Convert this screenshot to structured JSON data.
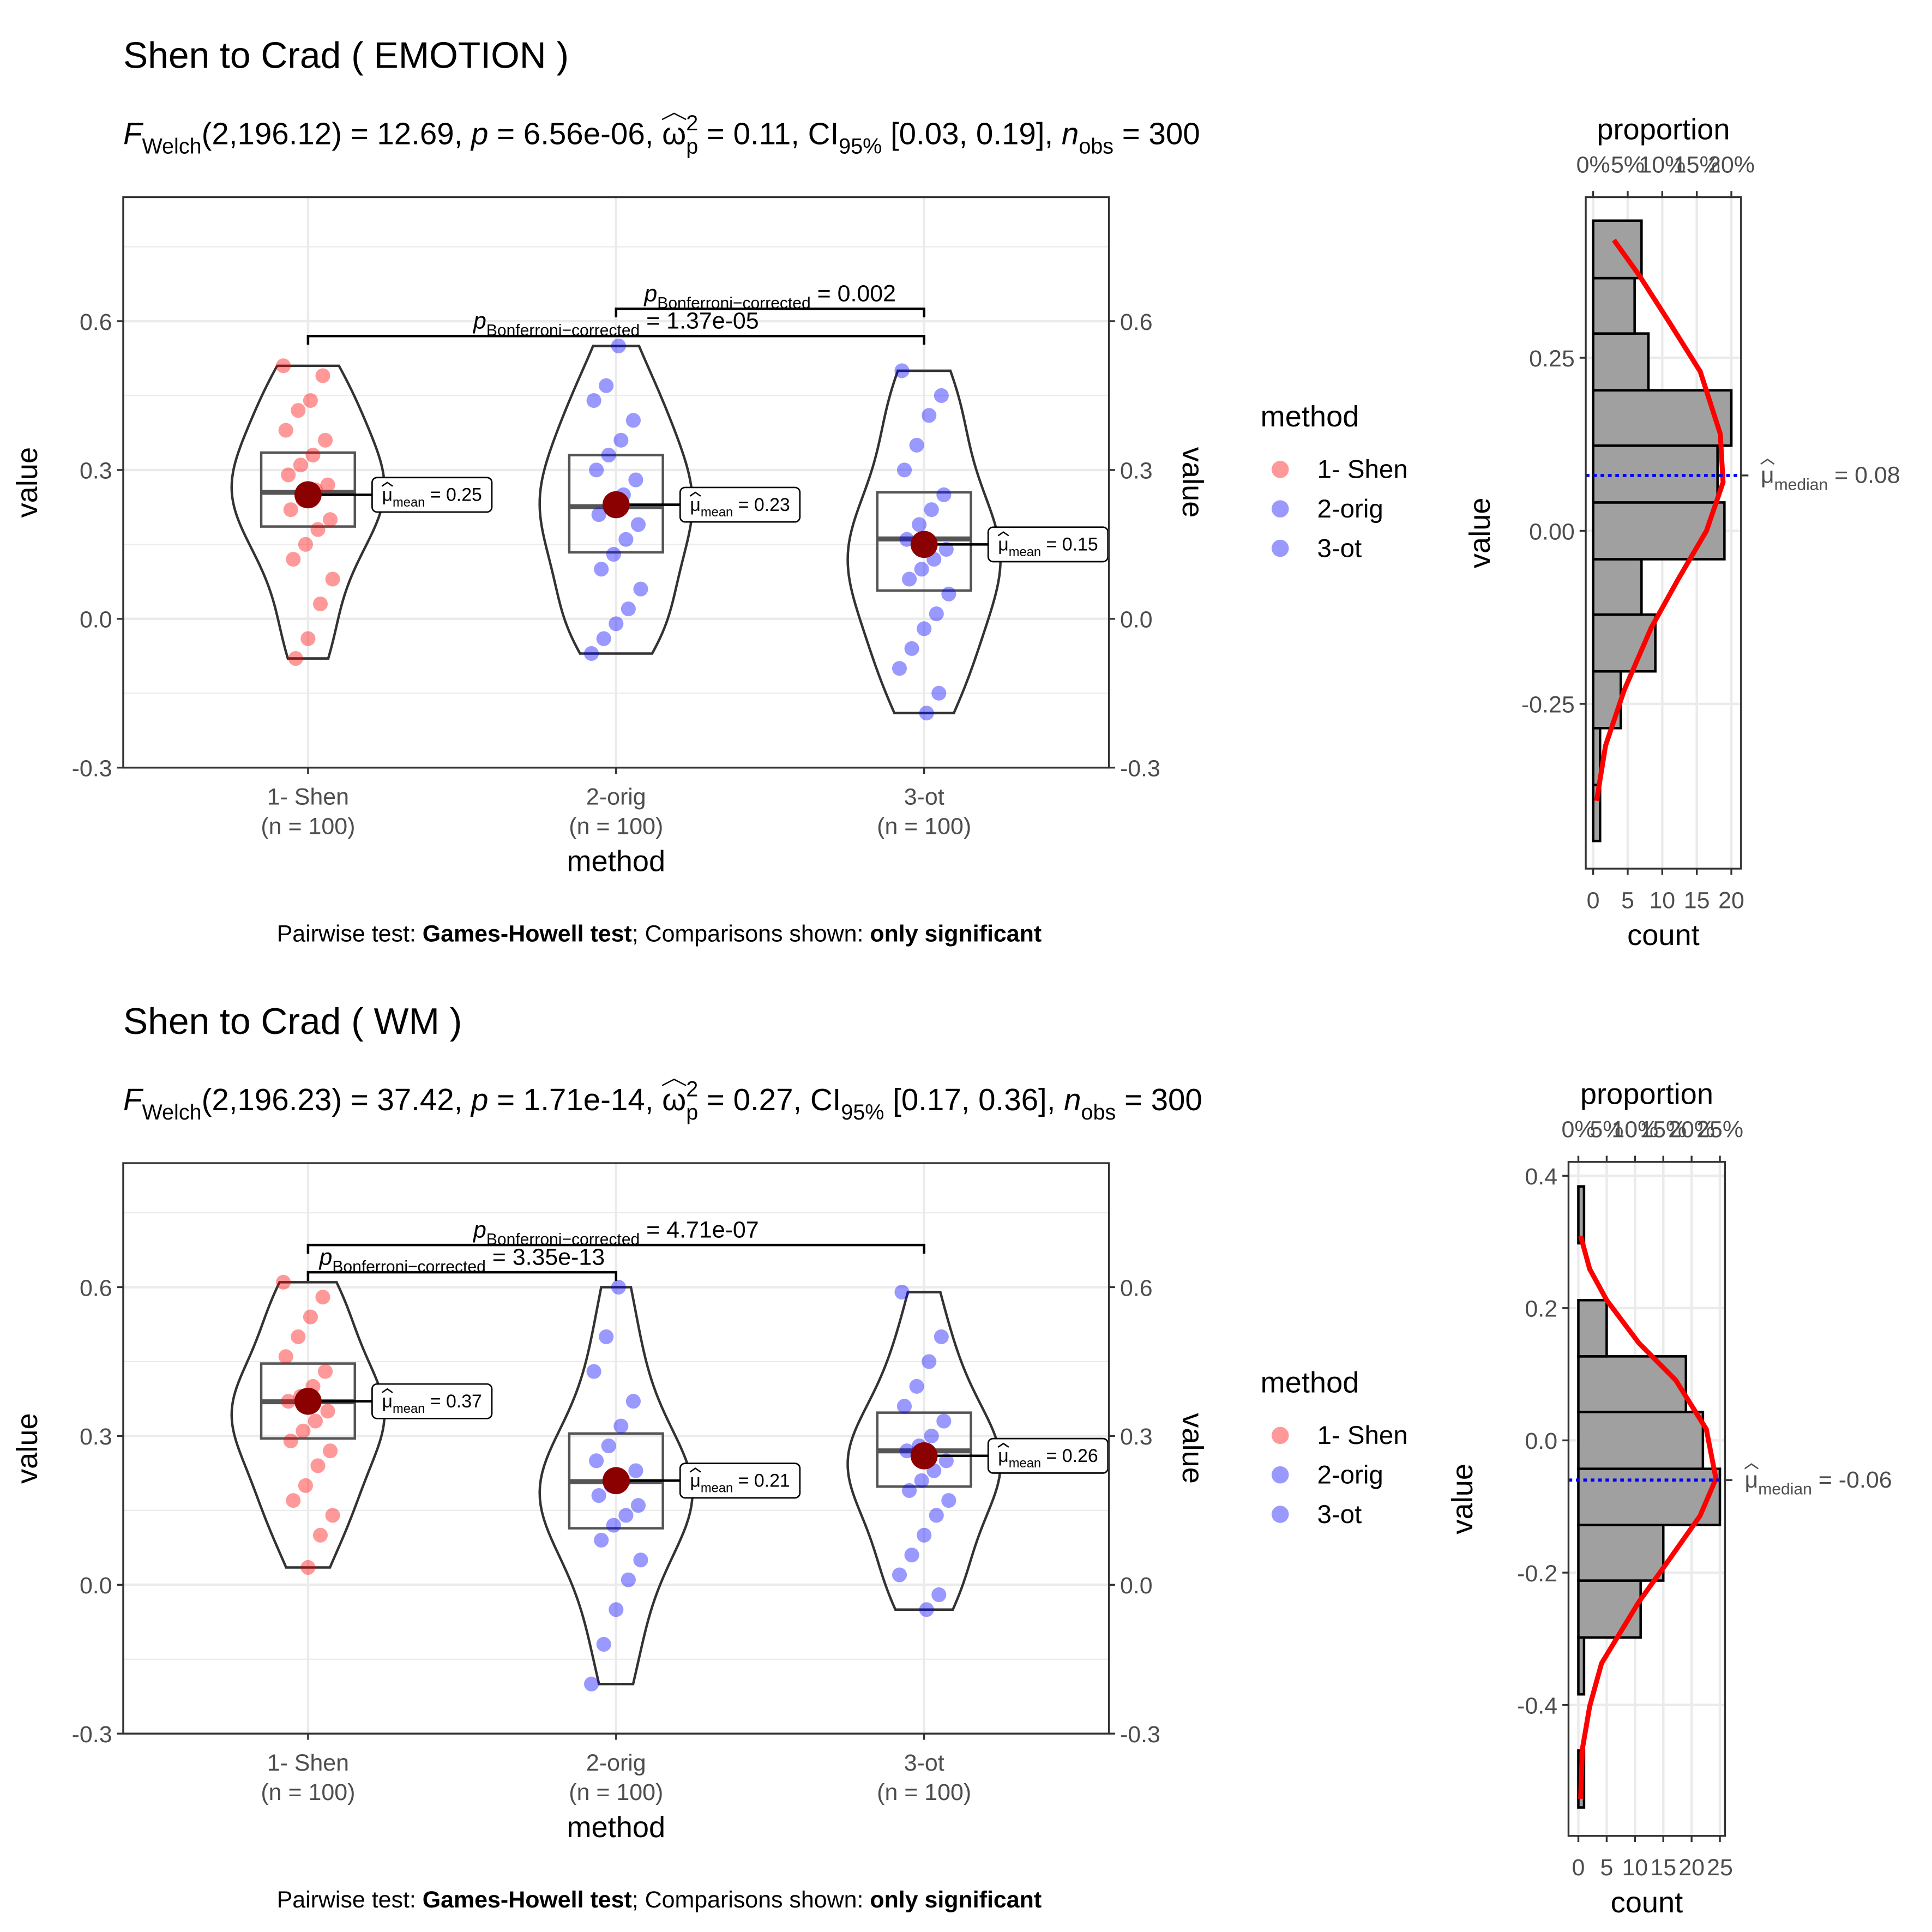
{
  "chart_data": [
    {
      "type": "violin",
      "title": "Shen to Crad ( EMOTION )",
      "subtitle": [
        {
          "text": "F",
          "style": "italic"
        },
        {
          "text": "Welch",
          "style": "sub"
        },
        {
          "text": "(2,196.12) = 12.69, ",
          "style": "normal"
        },
        {
          "text": "p",
          "style": "italic"
        },
        {
          "text": " = 6.56e-06, ",
          "style": "normal"
        },
        {
          "text": "ω",
          "style": "hat"
        },
        {
          "text": "2",
          "style": "sup"
        },
        {
          "text": "p",
          "style": "sub"
        },
        {
          "text": " = 0.11, CI",
          "style": "normal"
        },
        {
          "text": "95%",
          "style": "sub"
        },
        {
          "text": " [0.03, 0.19], ",
          "style": "normal"
        },
        {
          "text": "n",
          "style": "italic"
        },
        {
          "text": "obs",
          "style": "sub"
        },
        {
          "text": " = 300",
          "style": "normal"
        }
      ],
      "x_label": "method",
      "y_label": "value",
      "categories": [
        "1- Shen",
        "2-orig",
        "3-ot"
      ],
      "category_sublabels": [
        "(n = 100)",
        "(n = 100)",
        "(n = 100)"
      ],
      "ylim": [
        -0.3,
        0.85
      ],
      "yticks": [
        -0.3,
        {
          "value": 0,
          "label": "0.0"
        },
        0.3,
        0.6
      ],
      "minor_yticks": [
        -0.15,
        0.15,
        0.45,
        0.75
      ],
      "grid": true,
      "secondary_y_axis": true,
      "legend_title": "method",
      "legend_position": "right",
      "series": [
        {
          "name": "1- Shen",
          "color": "#ff0000",
          "values": [
            0.51,
            0.49,
            0.44,
            0.42,
            0.38,
            0.36,
            0.33,
            0.31,
            0.29,
            0.27,
            0.26,
            0.24,
            0.22,
            0.2,
            0.18,
            0.15,
            0.12,
            0.08,
            0.03,
            -0.04,
            -0.08
          ],
          "box": [
            0.186,
            0.255,
            0.335
          ],
          "mean": 0.25
        },
        {
          "name": "2-orig",
          "color": "#0000ff",
          "values": [
            0.55,
            0.47,
            0.44,
            0.4,
            0.36,
            0.33,
            0.3,
            0.28,
            0.25,
            0.23,
            0.21,
            0.19,
            0.16,
            0.13,
            0.1,
            0.06,
            0.02,
            -0.01,
            -0.04,
            -0.07
          ],
          "box": [
            0.134,
            0.226,
            0.33
          ],
          "mean": 0.23
        },
        {
          "name": "3-ot",
          "color": "#0000ff",
          "values": [
            0.5,
            0.45,
            0.41,
            0.35,
            0.3,
            0.25,
            0.22,
            0.19,
            0.16,
            0.14,
            0.12,
            0.1,
            0.08,
            0.05,
            0.01,
            -0.02,
            -0.06,
            -0.1,
            -0.15,
            -0.19
          ],
          "box": [
            0.057,
            0.161,
            0.255
          ],
          "mean": 0.15
        }
      ],
      "mean_color": "#8b0000",
      "mean_label": [
        {
          "text": "μ",
          "style": "hat"
        },
        {
          "text": "mean",
          "style": "sub"
        },
        {
          "text": " = ",
          "style": "normal"
        }
      ],
      "p_label": [
        {
          "text": "p",
          "style": "italic"
        },
        {
          "text": "Bonferroni−corrected",
          "style": "sub"
        },
        {
          "text": " = ",
          "style": "normal"
        }
      ],
      "comparisons": [
        {
          "groups": [
            "1- Shen",
            "3-ot"
          ],
          "label": "1.37e-05"
        },
        {
          "groups": [
            "2-orig",
            "3-ot"
          ],
          "label": "0.002"
        }
      ],
      "caption": [
        {
          "text": "Pairwise test: ",
          "style": "normal"
        },
        {
          "text": "Games-Howell test",
          "style": "bold"
        },
        {
          "text": "; Comparisons shown: ",
          "style": "normal"
        },
        {
          "text": "only significant",
          "style": "bold"
        }
      ]
    },
    {
      "type": "histogram",
      "orientation": "horizontal",
      "bins": [
        -0.448,
        -0.367,
        -0.285,
        -0.203,
        -0.121,
        -0.041,
        0.041,
        0.123,
        0.203,
        0.285,
        0.365,
        0.448
      ],
      "counts": [
        1,
        1,
        4,
        9,
        7,
        19,
        18,
        20,
        8,
        6,
        7
      ],
      "color": "#a0a0a0",
      "x_label": "count",
      "x2_label": "proportion",
      "y_label": "value",
      "xlim": [
        -1.07,
        21.4
      ],
      "xticks": [
        0,
        5,
        10,
        15,
        20
      ],
      "x2lim": [
        -1.07,
        21.4
      ],
      "x2ticks": [
        {
          "value": 0,
          "label": "0%"
        },
        {
          "value": 5,
          "label": "5%"
        },
        {
          "value": 10,
          "label": "10%"
        },
        {
          "value": 15,
          "label": "15%"
        },
        {
          "value": 20,
          "label": "20%"
        }
      ],
      "ylim": [
        -0.488,
        0.482
      ],
      "yticks": [
        -0.25,
        {
          "value": 0,
          "label": "0.00"
        },
        0.25
      ],
      "grid": true,
      "curve": {
        "color": "#ff0000",
        "x": [
          0.5,
          1.8,
          4.5,
          8.4,
          12.3,
          16.4,
          18.8,
          18.4,
          15.5,
          11.1,
          6.6,
          3.0
        ],
        "y": [
          -0.39,
          -0.31,
          -0.23,
          -0.14,
          -0.07,
          0.0,
          0.07,
          0.14,
          0.23,
          0.3,
          0.37,
          0.42
        ]
      },
      "median": 0.08,
      "median_color": "#0000ff",
      "median_label": [
        {
          "text": "μ",
          "style": "hat"
        },
        {
          "text": "median",
          "style": "sub"
        },
        {
          "text": " = ",
          "style": "normal"
        }
      ]
    },
    {
      "type": "violin",
      "title": "Shen to Crad ( WM )",
      "subtitle": [
        {
          "text": "F",
          "style": "italic"
        },
        {
          "text": "Welch",
          "style": "sub"
        },
        {
          "text": "(2,196.23) = 37.42, ",
          "style": "normal"
        },
        {
          "text": "p",
          "style": "italic"
        },
        {
          "text": " = 1.71e-14, ",
          "style": "normal"
        },
        {
          "text": "ω",
          "style": "hat"
        },
        {
          "text": "2",
          "style": "sup"
        },
        {
          "text": "p",
          "style": "sub"
        },
        {
          "text": " = 0.27, CI",
          "style": "normal"
        },
        {
          "text": "95%",
          "style": "sub"
        },
        {
          "text": " [0.17, 0.36], ",
          "style": "normal"
        },
        {
          "text": "n",
          "style": "italic"
        },
        {
          "text": "obs",
          "style": "sub"
        },
        {
          "text": " = 300",
          "style": "normal"
        }
      ],
      "x_label": "method",
      "y_label": "value",
      "categories": [
        "1- Shen",
        "2-orig",
        "3-ot"
      ],
      "category_sublabels": [
        "(n = 100)",
        "(n = 100)",
        "(n = 100)"
      ],
      "ylim": [
        -0.3,
        0.85
      ],
      "yticks": [
        -0.3,
        {
          "value": 0,
          "label": "0.0"
        },
        0.3,
        0.6
      ],
      "minor_yticks": [
        -0.15,
        0.15,
        0.45,
        0.75
      ],
      "grid": true,
      "secondary_y_axis": true,
      "legend_title": "method",
      "legend_position": "right",
      "series": [
        {
          "name": "1- Shen",
          "color": "#ff0000",
          "values": [
            0.61,
            0.58,
            0.54,
            0.5,
            0.46,
            0.43,
            0.4,
            0.38,
            0.37,
            0.35,
            0.33,
            0.31,
            0.29,
            0.27,
            0.24,
            0.2,
            0.17,
            0.14,
            0.1,
            0.035
          ],
          "box": [
            0.295,
            0.369,
            0.446
          ],
          "mean": 0.37
        },
        {
          "name": "2-orig",
          "color": "#0000ff",
          "values": [
            0.6,
            0.5,
            0.43,
            0.37,
            0.32,
            0.28,
            0.25,
            0.23,
            0.21,
            0.2,
            0.18,
            0.16,
            0.14,
            0.12,
            0.09,
            0.05,
            0.01,
            -0.05,
            -0.12,
            -0.2
          ],
          "box": [
            0.114,
            0.208,
            0.305
          ],
          "mean": 0.21
        },
        {
          "name": "3-ot",
          "color": "#0000ff",
          "values": [
            0.59,
            0.5,
            0.45,
            0.4,
            0.36,
            0.33,
            0.3,
            0.28,
            0.27,
            0.25,
            0.23,
            0.21,
            0.19,
            0.17,
            0.14,
            0.1,
            0.06,
            0.02,
            -0.02,
            -0.05
          ],
          "box": [
            0.198,
            0.27,
            0.347
          ],
          "mean": 0.26
        }
      ],
      "mean_color": "#8b0000",
      "mean_label": [
        {
          "text": "μ",
          "style": "hat"
        },
        {
          "text": "mean",
          "style": "sub"
        },
        {
          "text": " = ",
          "style": "normal"
        }
      ],
      "p_label": [
        {
          "text": "p",
          "style": "italic"
        },
        {
          "text": "Bonferroni−corrected",
          "style": "sub"
        },
        {
          "text": " = ",
          "style": "normal"
        }
      ],
      "comparisons": [
        {
          "groups": [
            "1- Shen",
            "2-orig"
          ],
          "label": "3.35e-13"
        },
        {
          "groups": [
            "1- Shen",
            "3-ot"
          ],
          "label": "4.71e-07"
        }
      ],
      "caption": [
        {
          "text": "Pairwise test: ",
          "style": "normal"
        },
        {
          "text": "Games-Howell test",
          "style": "bold"
        },
        {
          "text": "; Comparisons shown: ",
          "style": "normal"
        },
        {
          "text": "only significant",
          "style": "bold"
        }
      ]
    },
    {
      "type": "histogram",
      "orientation": "horizontal",
      "bins": [
        -0.555,
        -0.469,
        -0.384,
        -0.298,
        -0.212,
        -0.128,
        -0.043,
        0.043,
        0.127,
        0.212,
        0.298,
        0.384
      ],
      "counts": [
        1,
        0,
        1,
        11,
        15,
        25,
        22,
        19,
        5,
        0,
        1
      ],
      "color": "#a0a0a0",
      "x_label": "count",
      "x2_label": "proportion",
      "y_label": "value",
      "xlim": [
        -1.74,
        25.9
      ],
      "xticks": [
        0,
        5,
        10,
        15,
        20,
        25
      ],
      "x2lim": [
        -1.74,
        25.9
      ],
      "x2ticks": [
        {
          "value": 0,
          "label": "0%"
        },
        {
          "value": 5,
          "label": "5%"
        },
        {
          "value": 10,
          "label": "10%"
        },
        {
          "value": 15,
          "label": "15%"
        },
        {
          "value": 20,
          "label": "20%"
        },
        {
          "value": 25,
          "label": "25%"
        }
      ],
      "ylim": [
        -0.598,
        0.421
      ],
      "yticks": [
        -0.4,
        -0.2,
        {
          "value": 0,
          "label": "0.0"
        },
        0.2,
        0.4
      ],
      "grid": true,
      "curve": {
        "color": "#ff0000",
        "x": [
          0.4,
          0.7,
          2.0,
          4.1,
          10.7,
          15.4,
          21.5,
          24.3,
          22.6,
          17.2,
          10.7,
          5.0,
          2.0,
          0.4
        ],
        "y": [
          -0.542,
          -0.467,
          -0.402,
          -0.337,
          -0.244,
          -0.188,
          -0.114,
          -0.058,
          0.017,
          0.091,
          0.147,
          0.212,
          0.259,
          0.309
        ]
      },
      "median": -0.06,
      "median_color": "#0000ff",
      "median_label": [
        {
          "text": "μ",
          "style": "hat"
        },
        {
          "text": "median",
          "style": "sub"
        },
        {
          "text": " = ",
          "style": "normal"
        }
      ]
    }
  ]
}
